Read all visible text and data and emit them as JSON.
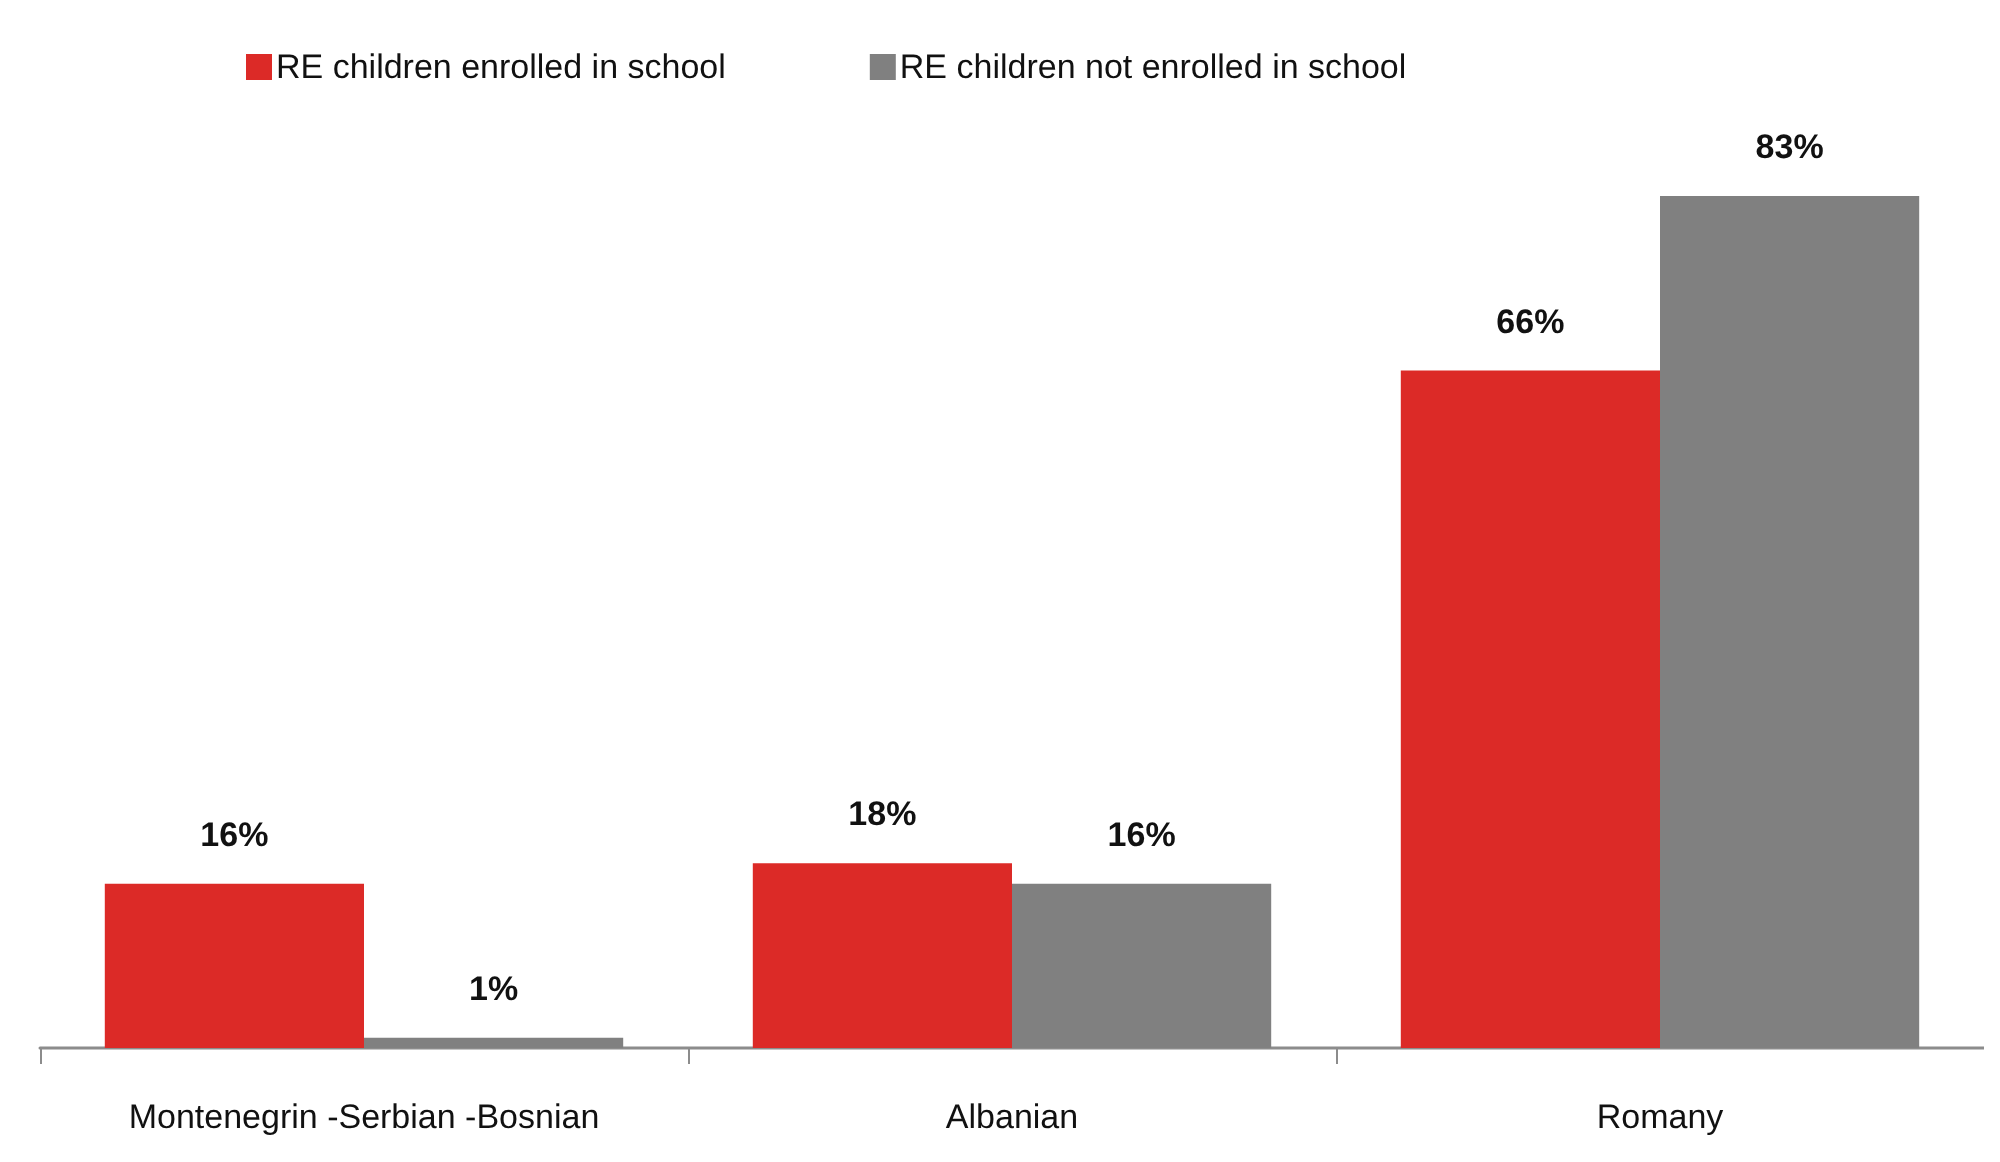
{
  "chart_data": {
    "type": "bar",
    "categories": [
      "Montenegrin -Serbian -Bosnian",
      "Albanian",
      "Romany"
    ],
    "series": [
      {
        "name": "RE children enrolled in school",
        "color": "#dc2a27",
        "values": [
          16,
          18,
          66
        ],
        "value_labels": [
          "16%",
          "18%",
          "66%"
        ]
      },
      {
        "name": "RE children not enrolled in school",
        "color": "#808080",
        "values": [
          1,
          16,
          83
        ],
        "value_labels": [
          "1%",
          "16%",
          "83%"
        ]
      }
    ],
    "legend": "top",
    "grid": false,
    "tick_labels": "x"
  }
}
